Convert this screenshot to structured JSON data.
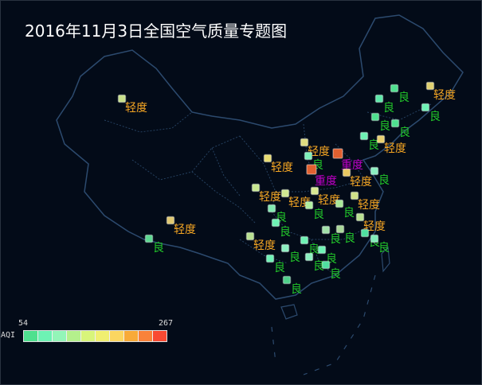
{
  "title": "2016年11月3日全国空气质量专题图",
  "legend": {
    "label": "AQI",
    "min": "54",
    "max": "267",
    "colors": [
      "#4fe08f",
      "#6ef2b4",
      "#93f5b8",
      "#b4f08c",
      "#d8f57a",
      "#f0ef70",
      "#fbd660",
      "#f8aa38",
      "#f9823a",
      "#f94a32"
    ]
  },
  "level_colors": {
    "良": "#22c82a",
    "轻度": "#f5a623",
    "重度": "#c000c8"
  },
  "map": {
    "outline_color": "#2c4a6e",
    "border_color": "#25405f"
  },
  "stations": [
    {
      "level": "轻度",
      "color": "#c8e08a"
    },
    {
      "level": "轻度",
      "color": "#e0c870"
    },
    {
      "level": "良",
      "color": "#5cd890"
    },
    {
      "level": "良",
      "color": "#4fe08f"
    },
    {
      "level": "轻度",
      "color": "#e0d070"
    },
    {
      "level": "良",
      "color": "#5ce8a8"
    },
    {
      "level": "良",
      "color": "#6ef2b4"
    },
    {
      "level": "良",
      "color": "#4fe08f"
    },
    {
      "level": "良",
      "color": "#4fe08f"
    },
    {
      "level": "良",
      "color": "#6ef2b4"
    },
    {
      "level": "轻度",
      "color": "#e8d070"
    },
    {
      "level": "轻度",
      "color": "#e0dc80"
    },
    {
      "level": "良",
      "color": "#7ef0b8"
    },
    {
      "level": "重度",
      "color": "#e06030"
    },
    {
      "level": "轻度",
      "color": "#e8dc70"
    },
    {
      "level": "重度",
      "color": "#e06030"
    },
    {
      "level": "轻度",
      "color": "#e8c860"
    },
    {
      "level": "良",
      "color": "#8cf0c0"
    },
    {
      "level": "轻度",
      "color": "#c8e890"
    },
    {
      "level": "轻度",
      "color": "#d0e890"
    },
    {
      "level": "轻度",
      "color": "#d8e890"
    },
    {
      "level": "轻度",
      "color": "#d0e088"
    },
    {
      "level": "良",
      "color": "#80e8b0"
    },
    {
      "level": "良",
      "color": "#a8e898"
    },
    {
      "level": "良",
      "color": "#b0f0a0"
    },
    {
      "level": "良",
      "color": "#6ef2b4"
    },
    {
      "level": "轻度",
      "color": "#b8e090"
    },
    {
      "level": "轻度",
      "color": "#b8e090"
    },
    {
      "level": "良",
      "color": "#6ef2b4"
    },
    {
      "level": "良",
      "color": "#a0e0a8"
    },
    {
      "level": "良",
      "color": "#a8d898"
    },
    {
      "level": "良",
      "color": "#4fe0a0"
    },
    {
      "level": "良",
      "color": "#80ecb8"
    },
    {
      "level": "良",
      "color": "#8cf0c0"
    },
    {
      "level": "良",
      "color": "#6ef2b4"
    },
    {
      "level": "良",
      "color": "#8cf0c0"
    },
    {
      "level": "良",
      "color": "#6ef2b4"
    },
    {
      "level": "良",
      "color": "#4fe0a0"
    },
    {
      "level": "良",
      "color": "#4fd08a"
    }
  ]
}
